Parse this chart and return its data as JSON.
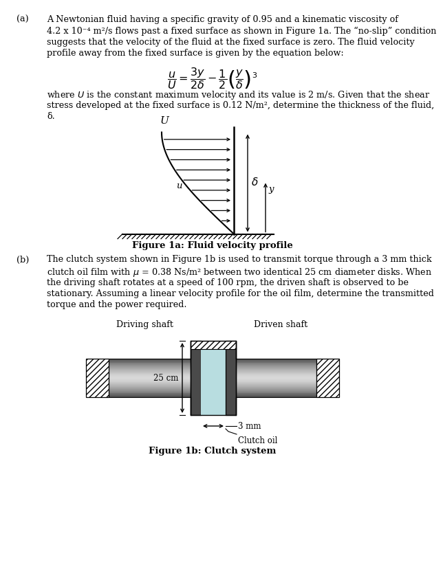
{
  "page_bg": "#ffffff",
  "text_color": "#000000",
  "fig_width": 5.98,
  "fig_height": 8.28,
  "part_a_label": "(a)",
  "part_a_lines": [
    "A Newtonian fluid having a specific gravity of 0.95 and a kinematic viscosity of",
    "4.2 x 10⁻⁴ m²/s flows past a fixed surface as shown in Figure 1a. The “no-slip” condition",
    "suggests that the velocity of the fluid at the fixed surface is zero. The fluid velocity",
    "profile away from the fixed surface is given by the equation below:"
  ],
  "part_a_after_eq": [
    "where $U$ is the constant maximum velocity and its value is 2 m/s. Given that the shear",
    "stress developed at the fixed surface is 0.12 N/m², determine the thickness of the fluid,",
    "δ."
  ],
  "fig1a_caption": "Figure 1a: Fluid velocity profile",
  "part_b_label": "(b)",
  "part_b_lines": [
    "The clutch system shown in Figure 1b is used to transmit torque through a 3 mm thick",
    "clutch oil film with $\\mu$ = 0.38 Ns/m² between two identical 25 cm diameter disks. When",
    "the driving shaft rotates at a speed of 100 rpm, the driven shaft is observed to be",
    "stationary. Assuming a linear velocity profile for the oil film, determine the transmitted",
    "torque and the power required."
  ],
  "fig1b_caption": "Figure 1b: Clutch system",
  "driving_shaft_label": "Driving shaft",
  "driven_shaft_label": "Driven shaft",
  "dim_25cm": "25 cm",
  "dim_3mm": "3 mm",
  "clutch_oil_label": "Clutch oil"
}
